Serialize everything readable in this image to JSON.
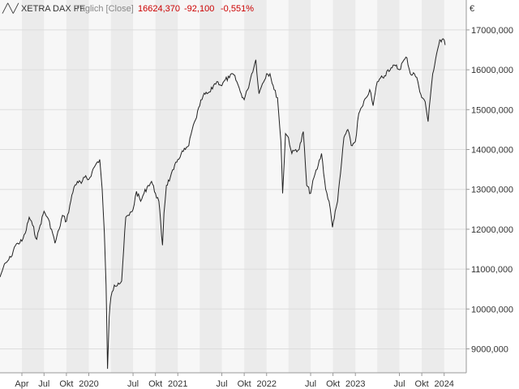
{
  "header": {
    "instrument": "XETRA DAX PF",
    "interval": "Täglich [Close]",
    "last": "16624,370",
    "change": "-92,100",
    "change_pct": "-0,551%"
  },
  "chart_data": {
    "type": "line",
    "currency_symbol": "€",
    "y_ticks": [
      {
        "value": 9000,
        "label": "9000,000"
      },
      {
        "value": 10000,
        "label": "10000,000"
      },
      {
        "value": 11000,
        "label": "11000,000"
      },
      {
        "value": 12000,
        "label": "12000,000"
      },
      {
        "value": 13000,
        "label": "13000,000"
      },
      {
        "value": 14000,
        "label": "14000,000"
      },
      {
        "value": 15000,
        "label": "15000,000"
      },
      {
        "value": 16000,
        "label": "16000,000"
      },
      {
        "value": 17000,
        "label": "17000,000"
      }
    ],
    "x_ticks": [
      {
        "date": "2019-04",
        "label": "Apr"
      },
      {
        "date": "2019-07",
        "label": "Jul"
      },
      {
        "date": "2019-10",
        "label": "Okt"
      },
      {
        "date": "2020-01",
        "label": "2020"
      },
      {
        "date": "2020-07",
        "label": "Jul"
      },
      {
        "date": "2020-10",
        "label": "Okt"
      },
      {
        "date": "2021-01",
        "label": "2021"
      },
      {
        "date": "2021-07",
        "label": "Jul"
      },
      {
        "date": "2021-10",
        "label": "Okt"
      },
      {
        "date": "2022-01",
        "label": "2022"
      },
      {
        "date": "2022-07",
        "label": "Jul"
      },
      {
        "date": "2022-10",
        "label": "Okt"
      },
      {
        "date": "2023-01",
        "label": "2023"
      },
      {
        "date": "2023-07",
        "label": "Jul"
      },
      {
        "date": "2023-10",
        "label": "Okt"
      },
      {
        "date": "2024-01",
        "label": "2024"
      }
    ],
    "x_range": [
      "2019-01-01",
      "2024-04-01"
    ],
    "ylim": [
      8400,
      17750
    ],
    "grid": true,
    "colors": {
      "line": "#222222",
      "band_dark": "#ebebeb",
      "band_light": "#f7f7f7",
      "grid": "#dddddd",
      "change": "#cc0000"
    },
    "series": [
      {
        "x": [
          "2019-01-01",
          "2019-01-15",
          "2019-02-01",
          "2019-02-15",
          "2019-03-01",
          "2019-03-15",
          "2019-04-01",
          "2019-04-15",
          "2019-05-01",
          "2019-05-15",
          "2019-06-01",
          "2019-06-15",
          "2019-07-01",
          "2019-07-15",
          "2019-08-01",
          "2019-08-15",
          "2019-09-01",
          "2019-09-15",
          "2019-10-01",
          "2019-10-15",
          "2019-11-01",
          "2019-11-15",
          "2019-12-01",
          "2019-12-15",
          "2020-01-01",
          "2020-01-15",
          "2020-02-01",
          "2020-02-15",
          "2020-02-25",
          "2020-03-05",
          "2020-03-12",
          "2020-03-18",
          "2020-03-25",
          "2020-04-01",
          "2020-04-15",
          "2020-05-01",
          "2020-05-15",
          "2020-06-01",
          "2020-06-15",
          "2020-07-01",
          "2020-07-15",
          "2020-08-01",
          "2020-08-15",
          "2020-09-01",
          "2020-09-15",
          "2020-10-01",
          "2020-10-15",
          "2020-10-30",
          "2020-11-05",
          "2020-11-15",
          "2020-12-01",
          "2020-12-15",
          "2021-01-01",
          "2021-01-15",
          "2021-02-01",
          "2021-02-15",
          "2021-03-01",
          "2021-03-15",
          "2021-04-01",
          "2021-04-15",
          "2021-05-01",
          "2021-05-15",
          "2021-06-01",
          "2021-06-15",
          "2021-07-01",
          "2021-07-15",
          "2021-08-01",
          "2021-08-15",
          "2021-09-01",
          "2021-09-15",
          "2021-10-01",
          "2021-10-15",
          "2021-11-01",
          "2021-11-18",
          "2021-12-01",
          "2021-12-15",
          "2022-01-01",
          "2022-01-15",
          "2022-02-01",
          "2022-02-15",
          "2022-03-01",
          "2022-03-08",
          "2022-03-20",
          "2022-04-01",
          "2022-04-15",
          "2022-05-01",
          "2022-05-15",
          "2022-06-01",
          "2022-06-15",
          "2022-07-01",
          "2022-07-15",
          "2022-08-01",
          "2022-08-15",
          "2022-09-01",
          "2022-09-15",
          "2022-09-29",
          "2022-10-10",
          "2022-10-20",
          "2022-11-01",
          "2022-11-15",
          "2022-12-01",
          "2022-12-15",
          "2023-01-01",
          "2023-01-15",
          "2023-02-01",
          "2023-02-15",
          "2023-03-01",
          "2023-03-15",
          "2023-04-01",
          "2023-04-15",
          "2023-05-01",
          "2023-05-15",
          "2023-06-01",
          "2023-06-15",
          "2023-07-01",
          "2023-07-15",
          "2023-08-01",
          "2023-08-15",
          "2023-09-01",
          "2023-09-15",
          "2023-10-01",
          "2023-10-15",
          "2023-10-27",
          "2023-11-05",
          "2023-11-15",
          "2023-12-01",
          "2023-12-14",
          "2023-12-20",
          "2024-01-01",
          "2024-01-05"
        ],
        "y": [
          10800,
          11050,
          11200,
          11300,
          11550,
          11650,
          11700,
          11900,
          12300,
          12100,
          11750,
          12100,
          12450,
          12300,
          12000,
          11650,
          12000,
          12350,
          12200,
          12600,
          13050,
          13200,
          13150,
          13300,
          13250,
          13450,
          13650,
          13750,
          13000,
          11900,
          10600,
          8500,
          9800,
          10300,
          10600,
          10650,
          10700,
          12300,
          12350,
          12500,
          12950,
          12700,
          12900,
          13100,
          13200,
          12900,
          12700,
          11600,
          12400,
          13100,
          13300,
          13500,
          13750,
          13900,
          14000,
          14100,
          14500,
          14750,
          15100,
          15350,
          15400,
          15450,
          15650,
          15700,
          15600,
          15750,
          15800,
          15900,
          15700,
          15450,
          15250,
          15500,
          15900,
          16250,
          15400,
          15650,
          15900,
          15900,
          15500,
          15300,
          14200,
          12900,
          14400,
          14300,
          13900,
          14000,
          14000,
          14450,
          13100,
          12900,
          13300,
          13600,
          13900,
          13000,
          12700,
          12050,
          12450,
          12700,
          13400,
          14300,
          14500,
          14100,
          14200,
          14900,
          15100,
          15300,
          15500,
          15100,
          15700,
          15800,
          15850,
          16000,
          16050,
          16100,
          16000,
          16200,
          16300,
          15900,
          15900,
          15700,
          15300,
          15200,
          14700,
          15300,
          15900,
          16400,
          16750,
          16700,
          16750,
          16620
        ]
      }
    ]
  }
}
